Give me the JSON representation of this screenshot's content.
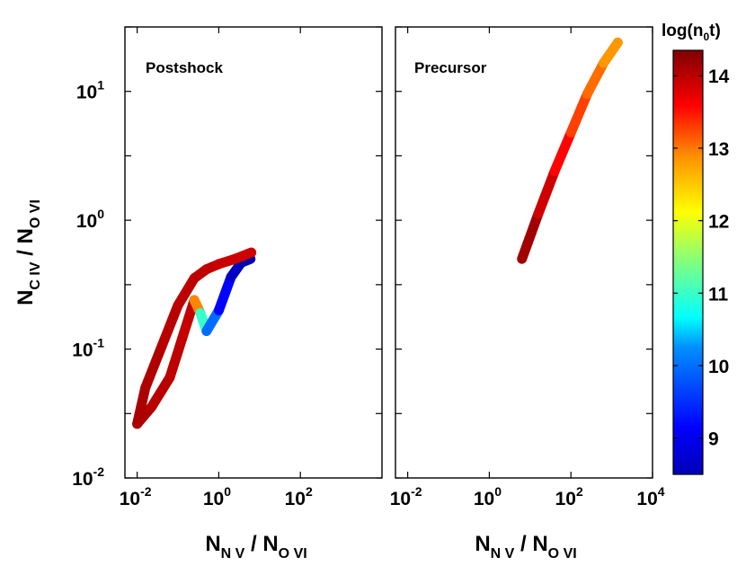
{
  "chart_data": {
    "type": "line",
    "colorbar": {
      "label": "log(n",
      "label_sub": "0",
      "label_end": "t)",
      "range": [
        8.5,
        14.35
      ],
      "ticks": [
        "9",
        "10",
        "11",
        "12",
        "13",
        "14"
      ],
      "tick_values": [
        9,
        10,
        11,
        12,
        13,
        14
      ],
      "colormap": "jet"
    },
    "ylabel": {
      "main": "N",
      "sub1": "C IV",
      "sep": " / N",
      "sub2": "O VI"
    },
    "yticks": [
      {
        "base": "10",
        "exp": "-2",
        "value": -2
      },
      {
        "base": "10",
        "exp": "-1",
        "value": -1
      },
      {
        "base": "10",
        "exp": "0",
        "value": 0
      },
      {
        "base": "10",
        "exp": "1",
        "value": 1
      }
    ],
    "ylim_log10": [
      -2.0,
      1.5
    ],
    "panels": [
      {
        "title": "Postshock",
        "xlim_log10": [
          -2.3,
          4.0
        ],
        "xticks": [
          {
            "base": "10",
            "exp": "-2",
            "value": -2
          },
          {
            "base": "10",
            "exp": "0",
            "value": 0
          },
          {
            "base": "10",
            "exp": "2",
            "value": 2
          }
        ],
        "xlabel": {
          "main": "N",
          "sub1": "N V",
          "sep": " / N",
          "sub2": "O VI"
        },
        "series": [
          {
            "name": "postshock-track",
            "x_log10": [
              -2.0,
              -1.65,
              -1.2,
              -0.9,
              -0.6,
              -0.45,
              -0.3,
              0.0,
              0.3,
              0.55,
              0.78
            ],
            "y_log10": [
              -1.58,
              -1.45,
              -1.22,
              -0.92,
              -0.62,
              -0.72,
              -0.86,
              -0.7,
              -0.44,
              -0.33,
              -0.3
            ],
            "color_value": [
              14.1,
              14.05,
              14.0,
              14.0,
              13.9,
              11.8,
              10.2,
              9.5,
              9.0,
              8.8,
              8.7
            ]
          },
          {
            "name": "postshock-upper-branch",
            "x_log10": [
              -2.0,
              -1.8,
              -1.4,
              -1.0,
              -0.6,
              -0.3,
              0.0,
              0.4,
              0.8
            ],
            "y_log10": [
              -1.58,
              -1.3,
              -0.98,
              -0.66,
              -0.45,
              -0.38,
              -0.34,
              -0.3,
              -0.25
            ],
            "color_value": [
              14.1,
              14.1,
              14.05,
              14.0,
              14.0,
              14.0,
              13.95,
              13.9,
              13.9
            ]
          }
        ]
      },
      {
        "title": "Precursor",
        "xlim_log10": [
          -2.3,
          4.0
        ],
        "xticks": [
          {
            "base": "10",
            "exp": "-2",
            "value": -2
          },
          {
            "base": "10",
            "exp": "0",
            "value": 0
          },
          {
            "base": "10",
            "exp": "2",
            "value": 2
          },
          {
            "base": "10",
            "exp": "4",
            "value": 4
          }
        ],
        "xlabel": {
          "main": "N",
          "sub1": "N V",
          "sep": " / N",
          "sub2": "O VI"
        },
        "series": [
          {
            "name": "precursor-track",
            "x_log10": [
              0.8,
              1.2,
              1.6,
              2.0,
              2.4,
              2.8,
              3.15
            ],
            "y_log10": [
              -0.3,
              0.05,
              0.38,
              0.68,
              0.98,
              1.22,
              1.38
            ],
            "color_value": [
              14.3,
              14.0,
              13.8,
              13.4,
              13.1,
              12.9,
              12.6
            ]
          }
        ]
      }
    ]
  }
}
